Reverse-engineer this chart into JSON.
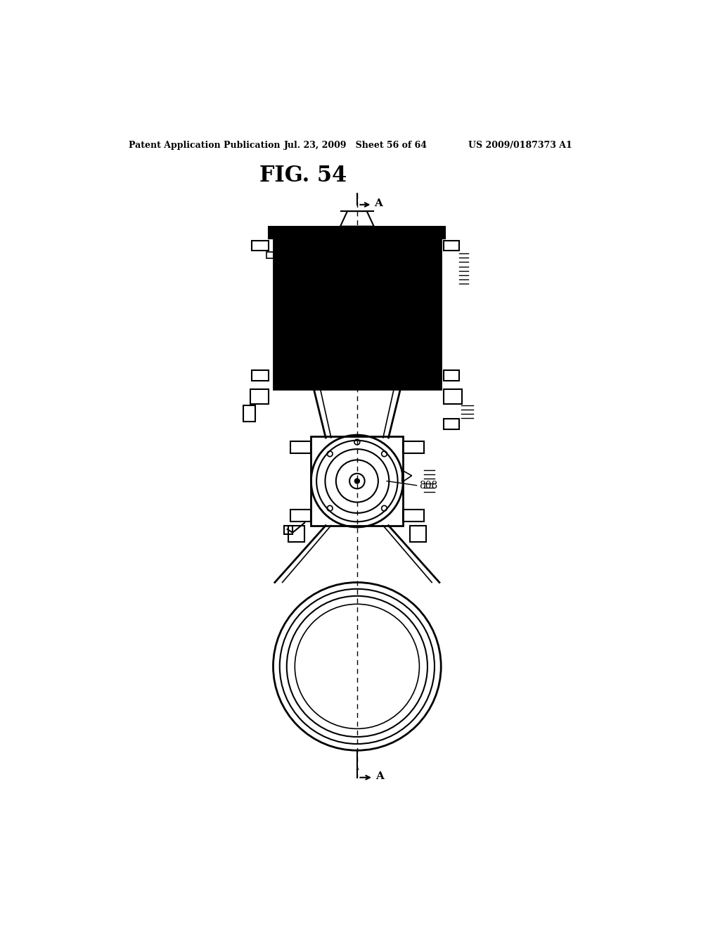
{
  "header_left": "Patent Application Publication",
  "header_mid": "Jul. 23, 2009   Sheet 56 of 64",
  "header_right": "US 2009/0187373 A1",
  "fig_title": "FIG. 54",
  "label_808": "808",
  "label_A": "A",
  "bg_color": "#ffffff",
  "line_color": "#000000"
}
